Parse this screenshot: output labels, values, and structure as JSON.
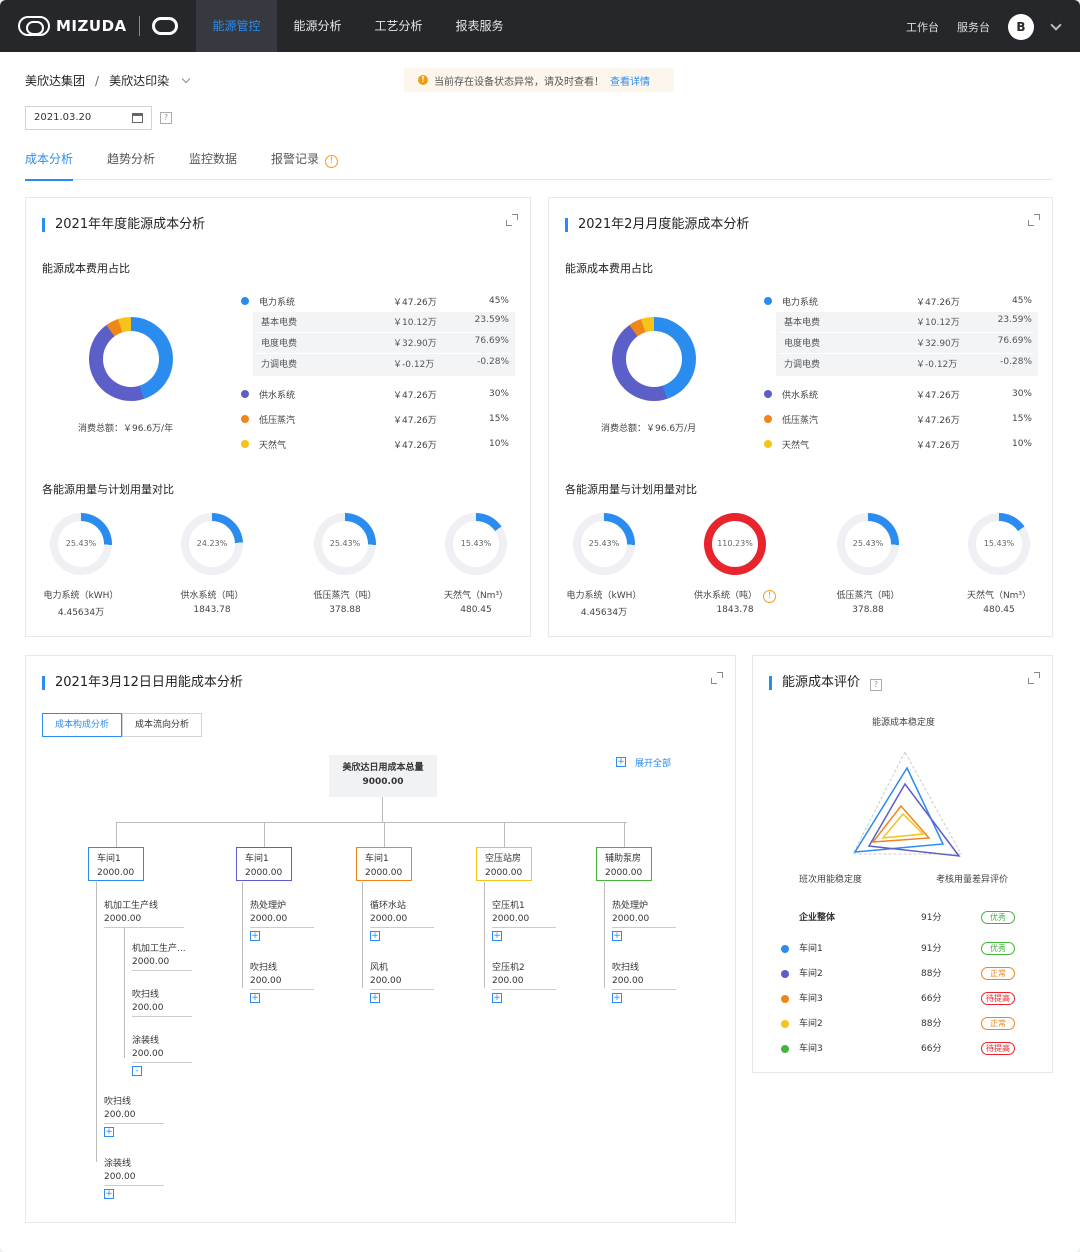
{
  "header": {
    "brand": "MIZUDA",
    "nav": [
      "能源管控",
      "能源分析",
      "工艺分析",
      "报表服务"
    ],
    "right": [
      "工作台",
      "服务台"
    ],
    "avatar": "B"
  },
  "breadcrumb": [
    "美欣达集团",
    "美欣达印染"
  ],
  "alert": {
    "text": "当前存在设备状态异常，请及时查看！",
    "link": "查看详情"
  },
  "date": "2021.03.20",
  "tabs": [
    "成本分析",
    "趋势分析",
    "监控数据",
    "报警记录"
  ],
  "colors": {
    "blue": "#2b8cf0",
    "purple": "#5b5fc7",
    "orange": "#f08519",
    "yellow": "#f7c21a",
    "red": "#e8242c",
    "green": "#46b43c"
  },
  "annual": {
    "title": "2021年年度能源成本分析",
    "share_title": "能源成本费用占比",
    "total": "消费总额：￥96.6万/年",
    "usage_title": "各能源用量与计划用量对比"
  },
  "monthly": {
    "title": "2021年2月月度能源成本分析",
    "share_title": "能源成本费用占比",
    "total": "消费总额：￥96.6万/月",
    "usage_title": "各能源用量与计划用量对比"
  },
  "cost_items": [
    {
      "name": "电力系统",
      "amount": "￥47.26万",
      "pct": "45%"
    },
    {
      "name": "供水系统",
      "amount": "￥47.26万",
      "pct": "30%"
    },
    {
      "name": "低压蒸汽",
      "amount": "￥47.26万",
      "pct": "15%"
    },
    {
      "name": "天然气",
      "amount": "￥47.26万",
      "pct": "10%"
    }
  ],
  "power_sub": [
    {
      "name": "基本电费",
      "amount": "￥10.12万",
      "pct": "23.59%"
    },
    {
      "name": "电度电费",
      "amount": "￥32.90万",
      "pct": "76.69%"
    },
    {
      "name": "力调电费",
      "amount": "￥-0.12万",
      "pct": "-0.28%"
    }
  ],
  "annual_gauges": [
    {
      "pct": "25.43%",
      "frac": 0.2543,
      "label": "电力系统（kWH）",
      "value": "4.45634万"
    },
    {
      "pct": "24.23%",
      "frac": 0.2423,
      "label": "供水系统（吨）",
      "value": "1843.78"
    },
    {
      "pct": "25.43%",
      "frac": 0.2543,
      "label": "低压蒸汽（吨）",
      "value": "378.88"
    },
    {
      "pct": "15.43%",
      "frac": 0.1543,
      "label": "天然气（Nm³）",
      "value": "480.45"
    }
  ],
  "monthly_gauges": [
    {
      "pct": "25.43%",
      "frac": 0.2543,
      "label": "电力系统（kWH）",
      "value": "4.45634万"
    },
    {
      "pct": "110.23%",
      "frac": 1.1023,
      "label": "供水系统（吨）",
      "value": "1843.78"
    },
    {
      "pct": "25.43%",
      "frac": 0.2543,
      "label": "低压蒸汽（吨）",
      "value": "378.88"
    },
    {
      "pct": "15.43%",
      "frac": 0.1543,
      "label": "天然气（Nm³）",
      "value": "480.45"
    }
  ],
  "daily": {
    "title": "2021年3月12日日用能成本分析",
    "btn1": "成本构成分析",
    "btn2": "成本流向分析",
    "expand_all": "展开全部",
    "root_name": "美欣达日用成本总量",
    "root_value": "9000.00",
    "branches": [
      {
        "name": "车间1",
        "value": "2000.00"
      },
      {
        "name": "车间1",
        "value": "2000.00"
      },
      {
        "name": "车间1",
        "value": "2000.00"
      },
      {
        "name": "空压站房",
        "value": "2000.00"
      },
      {
        "name": "辅助泵房",
        "value": "2000.00"
      }
    ],
    "b1_leaves": [
      {
        "name": "机加工生产线",
        "value": "2000.00"
      },
      {
        "name": "机加工生产...",
        "value": "2000.00"
      },
      {
        "name": "吹扫线",
        "value": "200.00"
      },
      {
        "name": "涂装线",
        "value": "200.00"
      },
      {
        "name": "吹扫线",
        "value": "200.00"
      },
      {
        "name": "涂装线",
        "value": "200.00"
      }
    ],
    "b2_leaves": [
      {
        "name": "热处理炉",
        "value": "2000.00"
      },
      {
        "name": "吹扫线",
        "value": "200.00"
      }
    ],
    "b3_leaves": [
      {
        "name": "循环水站",
        "value": "2000.00"
      },
      {
        "name": "风机",
        "value": "200.00"
      }
    ],
    "b4_leaves": [
      {
        "name": "空压机1",
        "value": "2000.00"
      },
      {
        "name": "空压机2",
        "value": "200.00"
      }
    ],
    "b5_leaves": [
      {
        "name": "热处理炉",
        "value": "2000.00"
      },
      {
        "name": "吹扫线",
        "value": "200.00"
      }
    ]
  },
  "evaluation": {
    "title": "能源成本评价",
    "axis_top": "能源成本稳定度",
    "axis_left": "班次用能稳定度",
    "axis_right": "考核用量差异评价",
    "rows": [
      {
        "name": "企业整体",
        "score": "91分",
        "tag": "优秀",
        "tagcolor": "#46b43c",
        "dot": ""
      },
      {
        "name": "车间1",
        "score": "91分",
        "tag": "优秀",
        "tagcolor": "#46b43c",
        "dot": "#2b8cf0"
      },
      {
        "name": "车间2",
        "score": "88分",
        "tag": "正常",
        "tagcolor": "#f08519",
        "dot": "#5b5fc7"
      },
      {
        "name": "车间3",
        "score": "66分",
        "tag": "待提高",
        "tagcolor": "#e8242c",
        "dot": "#f08519"
      },
      {
        "name": "车间2",
        "score": "88分",
        "tag": "正常",
        "tagcolor": "#f08519",
        "dot": "#f7c21a"
      },
      {
        "name": "车间3",
        "score": "66分",
        "tag": "待提高",
        "tagcolor": "#e8242c",
        "dot": "#46b43c"
      }
    ]
  }
}
